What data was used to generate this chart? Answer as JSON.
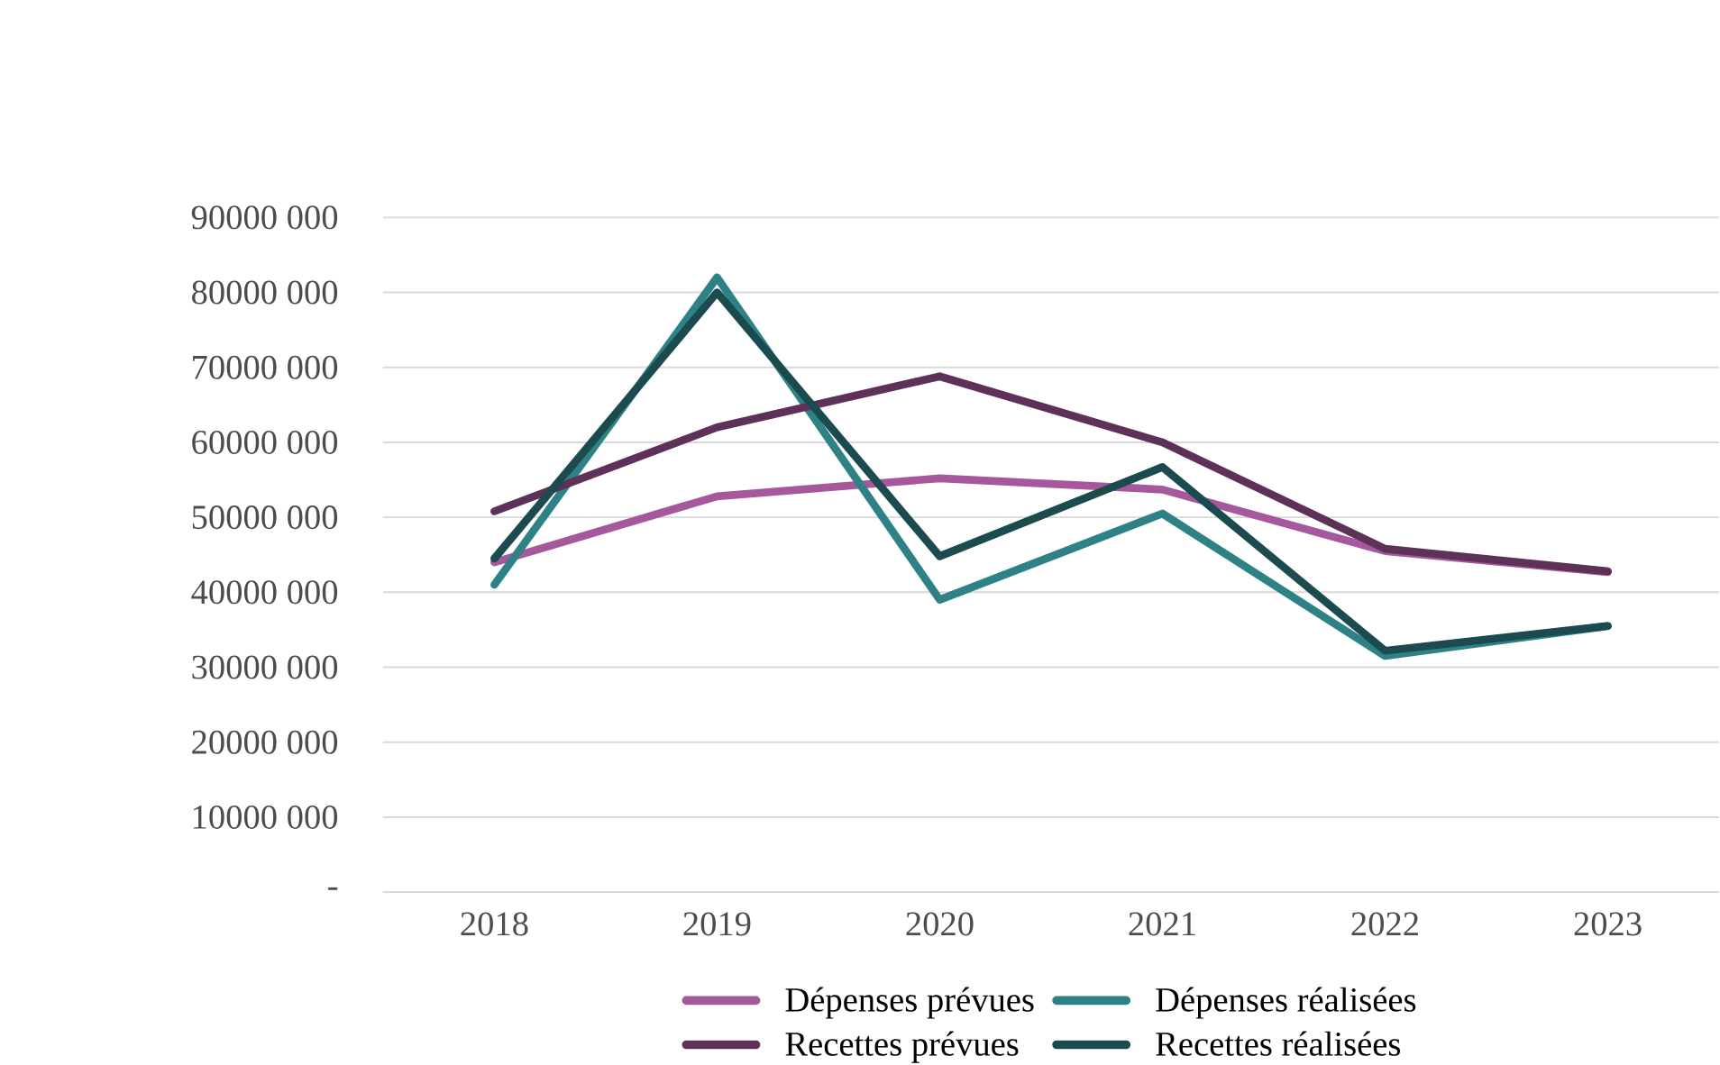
{
  "chart_data": {
    "type": "line",
    "categories": [
      "2018",
      "2019",
      "2020",
      "2021",
      "2022",
      "2023"
    ],
    "series": [
      {
        "name": "Dépenses prévues",
        "color": "#a5589b",
        "values": [
          44000000,
          52800000,
          55200000,
          53700000,
          45500000,
          42700000
        ]
      },
      {
        "name": "Dépenses réalisées",
        "color": "#2e8285",
        "values": [
          41000000,
          82000000,
          39000000,
          50500000,
          31500000,
          35500000
        ]
      },
      {
        "name": "Recettes prévues",
        "color": "#5e3159",
        "values": [
          50800000,
          62000000,
          68800000,
          60000000,
          45800000,
          42800000
        ]
      },
      {
        "name": "Recettes réalisées",
        "color": "#1b4b4f",
        "values": [
          44500000,
          80000000,
          44800000,
          56700000,
          32200000,
          35500000
        ]
      }
    ],
    "ylim": [
      0,
      90000000
    ],
    "yticks": [
      {
        "value": 0,
        "label": "-"
      },
      {
        "value": 10000000,
        "label": "10000 000"
      },
      {
        "value": 20000000,
        "label": "20000 000"
      },
      {
        "value": 30000000,
        "label": "30000 000"
      },
      {
        "value": 40000000,
        "label": "40000 000"
      },
      {
        "value": 50000000,
        "label": "50000 000"
      },
      {
        "value": 60000000,
        "label": "60000 000"
      },
      {
        "value": 70000000,
        "label": "70000 000"
      },
      {
        "value": 80000000,
        "label": "80000 000"
      },
      {
        "value": 90000000,
        "label": "90000 000"
      }
    ],
    "grid": "y",
    "legend": "bottom",
    "marker": "none",
    "line_style": "solid"
  }
}
